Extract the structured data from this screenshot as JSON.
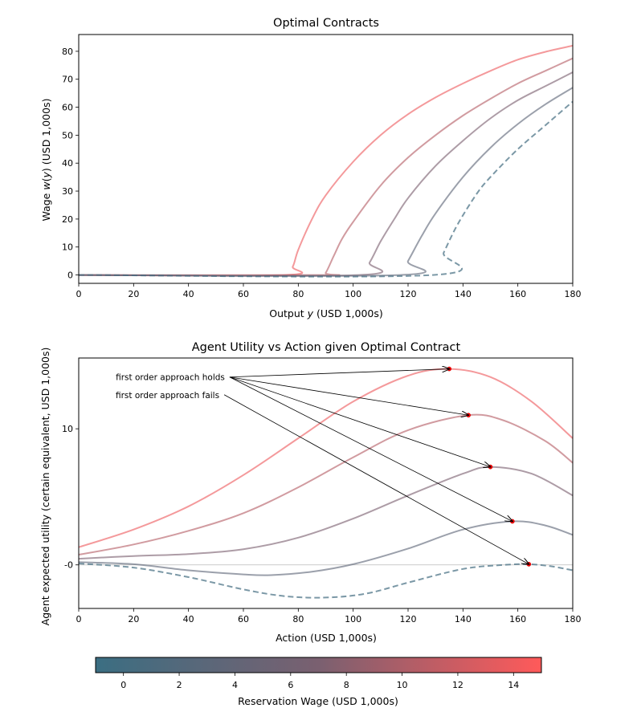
{
  "chart_data": [
    {
      "type": "line",
      "title": "Optimal Contracts",
      "xlabel": "Output y (USD 1,000s)",
      "ylabel": "Wage w(y) (USD 1,000s)",
      "xlim": [
        0,
        180
      ],
      "ylim": [
        -3,
        86
      ],
      "xticks": [
        0,
        20,
        40,
        60,
        80,
        100,
        120,
        140,
        160,
        180
      ],
      "yticks": [
        0,
        10,
        20,
        30,
        40,
        50,
        60,
        70,
        80
      ],
      "series": [
        {
          "name": "reservation wage 14",
          "reservation_wage": 14,
          "dashed": false,
          "points": [
            [
              0,
              0
            ],
            [
              75,
              0
            ],
            [
              78,
              3
            ],
            [
              80,
              9
            ],
            [
              85,
              20
            ],
            [
              90,
              28.5
            ],
            [
              100,
              40.5
            ],
            [
              110,
              50
            ],
            [
              120,
              57.5
            ],
            [
              130,
              63.5
            ],
            [
              140,
              68.5
            ],
            [
              150,
              73
            ],
            [
              160,
              77
            ],
            [
              170,
              79.8
            ],
            [
              180,
              82
            ]
          ]
        },
        {
          "name": "reservation wage 10.5",
          "reservation_wage": 10.5,
          "dashed": false,
          "points": [
            [
              0,
              0
            ],
            [
              88,
              0
            ],
            [
              90,
              0.8
            ],
            [
              93,
              7
            ],
            [
              96,
              13
            ],
            [
              100,
              19
            ],
            [
              110,
              32
            ],
            [
              120,
              42
            ],
            [
              130,
              50
            ],
            [
              140,
              57
            ],
            [
              150,
              63
            ],
            [
              160,
              68.5
            ],
            [
              170,
              73
            ],
            [
              180,
              77.5
            ]
          ]
        },
        {
          "name": "reservation wage 7",
          "reservation_wage": 7,
          "dashed": false,
          "points": [
            [
              0,
              0
            ],
            [
              102,
              0
            ],
            [
              106,
              4.5
            ],
            [
              110,
              12
            ],
            [
              115,
              20
            ],
            [
              120,
              27.5
            ],
            [
              130,
              39
            ],
            [
              140,
              48
            ],
            [
              150,
              56
            ],
            [
              160,
              62.5
            ],
            [
              170,
              67.5
            ],
            [
              180,
              72.5
            ]
          ]
        },
        {
          "name": "reservation wage 3.5",
          "reservation_wage": 3.5,
          "dashed": false,
          "points": [
            [
              0,
              0
            ],
            [
              117,
              0
            ],
            [
              120,
              5
            ],
            [
              125,
              14
            ],
            [
              130,
              22
            ],
            [
              140,
              35
            ],
            [
              150,
              45.5
            ],
            [
              160,
              54
            ],
            [
              170,
              61
            ],
            [
              180,
              67
            ]
          ]
        },
        {
          "name": "reservation wage 0",
          "reservation_wage": 0,
          "dashed": true,
          "points": [
            [
              0,
              0
            ],
            [
              129,
              0
            ],
            [
              133,
              8
            ],
            [
              138,
              18
            ],
            [
              145,
              29
            ],
            [
              150,
              35
            ],
            [
              160,
              45
            ],
            [
              170,
              53.5
            ],
            [
              180,
              62
            ]
          ]
        }
      ]
    },
    {
      "type": "line",
      "title": "Agent Utility vs Action given Optimal Contract",
      "xlabel": "Action (USD 1,000s)",
      "ylabel": "Agent expected utility (certain equivalent, USD 1,000s)",
      "xlim": [
        0,
        180
      ],
      "ylim": [
        -3.2,
        15.2
      ],
      "xticks": [
        0,
        20,
        40,
        60,
        80,
        100,
        120,
        140,
        160,
        180
      ],
      "yticks": [
        0,
        10
      ],
      "ytick_labels": [
        "-0",
        "10"
      ],
      "zero_line": true,
      "annotations": [
        {
          "text": "first order approach holds",
          "anchor": [
            55,
            13.8
          ],
          "targets": [
            [
              135,
              14.4
            ],
            [
              142,
              11.0
            ],
            [
              150,
              7.2
            ],
            [
              158,
              3.2
            ]
          ]
        },
        {
          "text": "first order approach fails",
          "anchor": [
            53,
            12.5
          ],
          "targets": [
            [
              164,
              0.05
            ]
          ]
        }
      ],
      "series": [
        {
          "name": "reservation wage 14",
          "reservation_wage": 14,
          "dashed": false,
          "optimum": [
            135,
            14.4
          ],
          "points": [
            [
              0,
              1.3
            ],
            [
              20,
              2.6
            ],
            [
              40,
              4.3
            ],
            [
              60,
              6.6
            ],
            [
              80,
              9.3
            ],
            [
              100,
              12.0
            ],
            [
              120,
              13.9
            ],
            [
              135,
              14.4
            ],
            [
              150,
              13.8
            ],
            [
              165,
              12.0
            ],
            [
              180,
              9.3
            ]
          ]
        },
        {
          "name": "reservation wage 10.5",
          "reservation_wage": 10.5,
          "dashed": false,
          "optimum": [
            142,
            11.0
          ],
          "points": [
            [
              0,
              0.75
            ],
            [
              20,
              1.5
            ],
            [
              40,
              2.5
            ],
            [
              60,
              3.8
            ],
            [
              80,
              5.7
            ],
            [
              100,
              7.9
            ],
            [
              120,
              9.9
            ],
            [
              142,
              11.0
            ],
            [
              155,
              10.6
            ],
            [
              170,
              9.1
            ],
            [
              180,
              7.5
            ]
          ]
        },
        {
          "name": "reservation wage 7",
          "reservation_wage": 7,
          "dashed": false,
          "optimum": [
            150,
            7.2
          ],
          "points": [
            [
              0,
              0.45
            ],
            [
              20,
              0.65
            ],
            [
              40,
              0.8
            ],
            [
              60,
              1.15
            ],
            [
              80,
              2.0
            ],
            [
              100,
              3.4
            ],
            [
              120,
              5.1
            ],
            [
              140,
              6.7
            ],
            [
              150,
              7.2
            ],
            [
              165,
              6.7
            ],
            [
              180,
              5.1
            ]
          ]
        },
        {
          "name": "reservation wage 3.5",
          "reservation_wage": 3.5,
          "dashed": false,
          "optimum": [
            158,
            3.2
          ],
          "points": [
            [
              0,
              0.2
            ],
            [
              20,
              0.05
            ],
            [
              40,
              -0.4
            ],
            [
              60,
              -0.7
            ],
            [
              70,
              -0.75
            ],
            [
              85,
              -0.5
            ],
            [
              100,
              0.05
            ],
            [
              120,
              1.2
            ],
            [
              140,
              2.6
            ],
            [
              158,
              3.2
            ],
            [
              170,
              2.9
            ],
            [
              180,
              2.2
            ]
          ]
        },
        {
          "name": "reservation wage 0",
          "reservation_wage": 0,
          "dashed": true,
          "optimum": [
            164,
            0.05
          ],
          "points": [
            [
              0,
              0.1
            ],
            [
              20,
              -0.2
            ],
            [
              40,
              -0.9
            ],
            [
              60,
              -1.8
            ],
            [
              75,
              -2.3
            ],
            [
              90,
              -2.4
            ],
            [
              105,
              -2.1
            ],
            [
              120,
              -1.3
            ],
            [
              140,
              -0.3
            ],
            [
              155,
              0.0
            ],
            [
              164,
              0.05
            ],
            [
              172,
              -0.1
            ],
            [
              180,
              -0.4
            ]
          ]
        }
      ]
    }
  ],
  "colorbar": {
    "label": "Reservation Wage (USD 1,000s)",
    "min": -1,
    "max": 15,
    "ticks": [
      0,
      2,
      4,
      6,
      8,
      10,
      12,
      14
    ],
    "color_low": "#3b6e82",
    "color_mid": "#7a6070",
    "color_high": "#ff5a5a"
  }
}
